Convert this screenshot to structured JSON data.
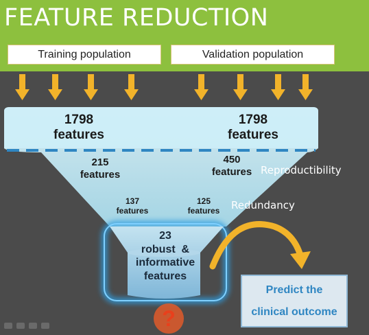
{
  "title": "FEATURE REDUCTION",
  "populations": {
    "training": "Training population",
    "validation": "Validation population"
  },
  "funnel": {
    "stage1": {
      "left": {
        "count": "1798",
        "unit": "features"
      },
      "right": {
        "count": "1798",
        "unit": "features"
      }
    },
    "stage2": {
      "left": {
        "count": "215",
        "unit": "features"
      },
      "right": {
        "count": "450",
        "unit": "features"
      },
      "label": "Reproductibility"
    },
    "stage3": {
      "left": {
        "count": "137",
        "unit": "features"
      },
      "right": {
        "count": "125",
        "unit": "features"
      },
      "label": "Redundancy"
    },
    "final": {
      "count": "23",
      "line1": "robust  &",
      "line2": "informative",
      "line3": "features"
    }
  },
  "outcome": {
    "line1": "Predict the",
    "line2": "clinical outcome"
  },
  "question_mark": "?",
  "colors": {
    "header": "#8dc03e",
    "arrow": "#f2b32a",
    "funnel": "#bfe6f2",
    "dash": "#2f86c2",
    "glow": "#2f9de0",
    "outcome_text": "#2f86c2",
    "curve_arrow": "#f2b32a",
    "question": "#e8401c"
  },
  "icons": [
    "arrow-down-icon",
    "curved-arrow-icon",
    "question-mark-icon"
  ]
}
